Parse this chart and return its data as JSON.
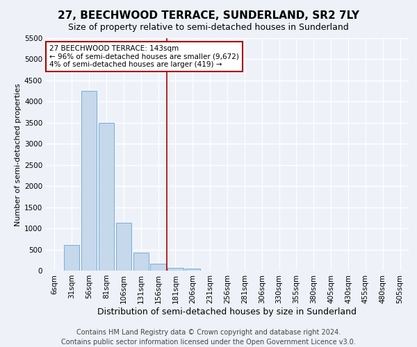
{
  "title": "27, BEECHWOOD TERRACE, SUNDERLAND, SR2 7LY",
  "subtitle": "Size of property relative to semi-detached houses in Sunderland",
  "xlabel": "Distribution of semi-detached houses by size in Sunderland",
  "ylabel": "Number of semi-detached properties",
  "footer_line1": "Contains HM Land Registry data © Crown copyright and database right 2024.",
  "footer_line2": "Contains public sector information licensed under the Open Government Licence v3.0.",
  "bar_labels": [
    "6sqm",
    "31sqm",
    "56sqm",
    "81sqm",
    "106sqm",
    "131sqm",
    "156sqm",
    "181sqm",
    "206sqm",
    "231sqm",
    "256sqm",
    "281sqm",
    "306sqm",
    "330sqm",
    "355sqm",
    "380sqm",
    "405sqm",
    "430sqm",
    "455sqm",
    "480sqm",
    "505sqm"
  ],
  "bar_values": [
    0,
    600,
    4250,
    3500,
    1130,
    420,
    170,
    60,
    50,
    0,
    0,
    0,
    0,
    0,
    0,
    0,
    0,
    0,
    0,
    0,
    0
  ],
  "bar_color": "#c5d8ec",
  "bar_edge_color": "#7aadd4",
  "ylim": [
    0,
    5500
  ],
  "yticks": [
    0,
    500,
    1000,
    1500,
    2000,
    2500,
    3000,
    3500,
    4000,
    4500,
    5000,
    5500
  ],
  "vline_x": 6.5,
  "vline_color": "#aa0000",
  "annotation_text": "27 BEECHWOOD TERRACE: 143sqm\n← 96% of semi-detached houses are smaller (9,672)\n4% of semi-detached houses are larger (419) →",
  "annotation_box_color": "#aa0000",
  "bg_color": "#eef2f8",
  "grid_color": "#ffffff",
  "title_fontsize": 11,
  "subtitle_fontsize": 9,
  "ylabel_fontsize": 8,
  "xlabel_fontsize": 9,
  "tick_fontsize": 7.5,
  "annotation_fontsize": 7.5,
  "footer_fontsize": 7
}
